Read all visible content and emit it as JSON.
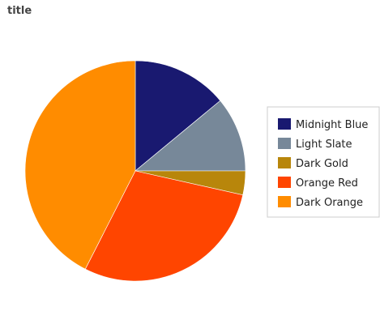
{
  "chart_data": {
    "type": "pie",
    "title": "title",
    "categories": [
      "Midnight Blue",
      "Light Slate",
      "Dark Gold",
      "Orange Red",
      "Dark Orange"
    ],
    "values": [
      14,
      11,
      3.5,
      29,
      42.5
    ],
    "colors": [
      "#191970",
      "#778899",
      "#B8860B",
      "#FF4500",
      "#FF8C00"
    ],
    "legend_position": "right"
  }
}
